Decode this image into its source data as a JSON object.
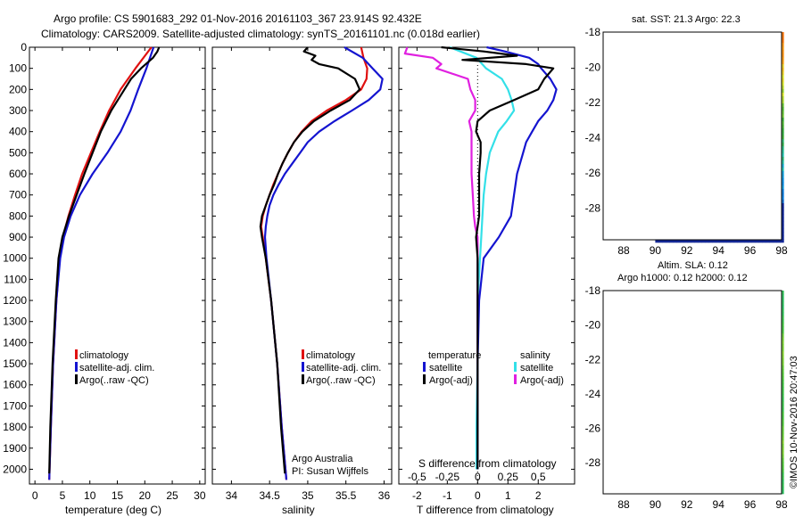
{
  "header": {
    "line1": "Argo profile: CS 5901683_292 01-Nov-2016 20161103_367 23.914S 92.432E",
    "line2": "Climatology: CARS2009. Satellite-adjusted climatology: synTS_20161101.nc (0.018d earlier)"
  },
  "colors": {
    "climatology": "#e01010",
    "satellite": "#1414d0",
    "argo": "#000000",
    "sat_salinity": "#33e0e8",
    "argo_salinity": "#e020e0"
  },
  "chart_data": [
    {
      "type": "line",
      "panel": "temperature",
      "xlabel": "temperature (deg C)",
      "ylim": [
        2070,
        0
      ],
      "xlim": [
        -1,
        31
      ],
      "xticks": [
        "0",
        "5",
        "10",
        "15",
        "20",
        "25",
        "30"
      ],
      "yticks": [
        "0",
        "100",
        "200",
        "300",
        "400",
        "500",
        "600",
        "700",
        "800",
        "900",
        "1000",
        "1100",
        "1200",
        "1300",
        "1400",
        "1500",
        "1600",
        "1700",
        "1800",
        "1900",
        "2000"
      ],
      "legend": [
        "climatology",
        "satellite-adj. clim.",
        "Argo(..raw -QC)"
      ],
      "series": [
        {
          "name": "climatology",
          "depth": [
            0,
            100,
            200,
            300,
            400,
            500,
            600,
            700,
            800,
            900,
            1000,
            1200,
            1500,
            1800,
            2050
          ],
          "values": [
            21.2,
            18.3,
            15.6,
            13.5,
            11.8,
            10.2,
            8.6,
            7.3,
            6.1,
            5.1,
            4.5,
            3.9,
            3.3,
            2.9,
            2.6
          ]
        },
        {
          "name": "satellite-adj. clim.",
          "depth": [
            0,
            100,
            200,
            300,
            400,
            500,
            600,
            700,
            800,
            900,
            1000,
            1200,
            1500,
            1800,
            2050
          ],
          "values": [
            21.6,
            20.3,
            18.8,
            17.4,
            15.6,
            13.2,
            10.5,
            8.2,
            6.5,
            5.3,
            4.6,
            3.9,
            3.3,
            2.9,
            2.6
          ]
        },
        {
          "name": "Argo(..raw -QC)",
          "depth": [
            0,
            20,
            50,
            100,
            150,
            200,
            300,
            400,
            500,
            600,
            700,
            800,
            900,
            1000,
            1200,
            1500,
            1800,
            2020
          ],
          "values": [
            22.6,
            22.3,
            21.5,
            19.3,
            17.5,
            16.3,
            13.9,
            12.0,
            10.5,
            9.0,
            7.6,
            6.2,
            5.0,
            4.3,
            3.8,
            3.2,
            2.8,
            2.6
          ]
        }
      ]
    },
    {
      "type": "line",
      "panel": "salinity",
      "xlabel": "salinity",
      "ylim": [
        2070,
        0
      ],
      "xlim": [
        33.75,
        36.1
      ],
      "xticks": [
        "34",
        "34.5",
        "35",
        "35.5",
        "36"
      ],
      "legend": [
        "climatology",
        "satellite-adj. clim.",
        "Argo(..raw -QC)"
      ],
      "annotation": [
        "Argo Australia",
        "PI: Susan Wijffels"
      ],
      "series": [
        {
          "name": "climatology",
          "depth": [
            0,
            50,
            100,
            150,
            200,
            250,
            300,
            350,
            400,
            450,
            500,
            550,
            600,
            650,
            700,
            750,
            800,
            850,
            900,
            1000,
            1200,
            1500,
            1800,
            2050
          ],
          "values": [
            35.7,
            35.73,
            35.78,
            35.77,
            35.7,
            35.5,
            35.25,
            35.05,
            34.92,
            34.82,
            34.74,
            34.67,
            34.61,
            34.55,
            34.5,
            34.45,
            34.41,
            34.39,
            34.41,
            34.45,
            34.52,
            34.6,
            34.66,
            34.72
          ]
        },
        {
          "name": "satellite-adj. clim.",
          "depth": [
            0,
            50,
            100,
            150,
            200,
            250,
            300,
            350,
            400,
            450,
            500,
            550,
            600,
            650,
            700,
            750,
            800,
            850,
            900,
            1000,
            1200,
            1500,
            1800,
            2050
          ],
          "values": [
            35.48,
            35.72,
            35.85,
            35.98,
            35.95,
            35.8,
            35.58,
            35.35,
            35.15,
            35.0,
            34.9,
            34.8,
            34.7,
            34.62,
            34.55,
            34.5,
            34.47,
            34.45,
            34.44,
            34.46,
            34.52,
            34.6,
            34.66,
            34.72
          ]
        },
        {
          "name": "Argo(..raw -QC)",
          "depth": [
            0,
            20,
            40,
            60,
            80,
            100,
            150,
            200,
            250,
            300,
            350,
            400,
            450,
            500,
            550,
            600,
            650,
            700,
            750,
            800,
            850,
            900,
            1000,
            1200,
            1500,
            1800,
            2020
          ],
          "values": [
            35.0,
            34.95,
            35.1,
            35.05,
            35.15,
            35.4,
            35.62,
            35.68,
            35.55,
            35.3,
            35.08,
            34.93,
            34.82,
            34.74,
            34.67,
            34.61,
            34.56,
            34.5,
            34.45,
            34.4,
            34.38,
            34.4,
            34.45,
            34.52,
            34.6,
            34.65,
            34.7
          ]
        }
      ]
    },
    {
      "type": "line",
      "panel": "difference",
      "xlabel_top": "S difference from climatology",
      "xlabel": "T difference from climatology",
      "ylim": [
        2070,
        0
      ],
      "xlim": [
        -2.6,
        3.2
      ],
      "xticks": [
        "-2",
        "-1",
        "0",
        "1",
        "2"
      ],
      "top_ticks": [
        "-0.5",
        "-0.25",
        "0",
        "0.25",
        "0.5"
      ],
      "legend_headers": [
        "temperature",
        "salinity"
      ],
      "legend": [
        "satellite",
        "Argo(-adj)",
        "satellite",
        "Argo(-adj)"
      ],
      "series": [
        {
          "name": "temperature satellite",
          "depth": [
            0,
            20,
            50,
            80,
            100,
            150,
            200,
            250,
            300,
            350,
            400,
            450,
            500,
            600,
            700,
            800,
            900,
            1000,
            1200,
            1500,
            1800,
            2000
          ],
          "values": [
            0.3,
            0.9,
            1.7,
            2.0,
            2.1,
            2.4,
            2.6,
            2.5,
            2.3,
            2.0,
            1.8,
            1.6,
            1.5,
            1.3,
            1.2,
            1.1,
            0.7,
            0.2,
            0.05,
            0.0,
            0.0,
            0.0
          ]
        },
        {
          "name": "temperature Argo(-adj)",
          "depth": [
            0,
            20,
            40,
            60,
            80,
            100,
            150,
            200,
            250,
            300,
            350,
            400,
            450,
            500,
            600,
            700,
            800,
            900,
            1000,
            1200,
            1500,
            1800,
            2000
          ],
          "values": [
            -1.2,
            0.2,
            1.3,
            -0.5,
            1.6,
            2.5,
            2.2,
            2.0,
            1.2,
            0.4,
            0.0,
            -0.05,
            0.1,
            0.1,
            0.05,
            0.05,
            0.05,
            -0.05,
            0.0,
            0.0,
            0.0,
            0.0,
            0.0
          ]
        },
        {
          "name": "salinity satellite",
          "depth": [
            0,
            50,
            100,
            150,
            200,
            250,
            300,
            350,
            400,
            500,
            600,
            700,
            800,
            900,
            1000,
            1200,
            1500,
            1800,
            2000
          ],
          "values": [
            -0.23,
            -0.01,
            0.07,
            0.2,
            0.25,
            0.28,
            0.3,
            0.24,
            0.17,
            0.1,
            0.07,
            0.05,
            0.04,
            0.03,
            0.02,
            0.0,
            0.0,
            -0.01,
            -0.01
          ]
        },
        {
          "name": "salinity Argo(-adj)",
          "depth": [
            0,
            30,
            50,
            80,
            100,
            150,
            200,
            250,
            300,
            350,
            400,
            500,
            600,
            700,
            800,
            850,
            900,
            1000,
            1200,
            1500
          ],
          "values": [
            -0.58,
            -0.6,
            -0.37,
            -0.3,
            -0.34,
            -0.08,
            -0.06,
            -0.02,
            -0.02,
            -0.07,
            -0.05,
            -0.05,
            -0.05,
            -0.04,
            -0.03,
            -0.02,
            0.0,
            0.0,
            0.0,
            0.0
          ]
        }
      ]
    },
    {
      "type": "heatmap",
      "panel": "sst-map",
      "title": "sat. SST: 21.3  Argo: 22.3",
      "xticks": [
        "88",
        "90",
        "92",
        "94",
        "96",
        "98"
      ],
      "yticks": [
        "-18",
        "-20",
        "-22",
        "-24",
        "-26",
        "-28"
      ],
      "xlim": [
        86.7,
        98
      ],
      "ylim": [
        -29.8,
        -18
      ]
    },
    {
      "type": "heatmap",
      "panel": "sla-map",
      "title_line1": "Altim. SLA: 0.12",
      "title_line2": "Argo h1000: 0.12  h2000: 0.12",
      "xticks": [
        "88",
        "90",
        "92",
        "94",
        "96",
        "98"
      ],
      "yticks": [
        "-18",
        "-20",
        "-22",
        "-24",
        "-26",
        "-28"
      ],
      "xlim": [
        86.7,
        98
      ],
      "ylim": [
        -29.8,
        -18
      ]
    }
  ],
  "footer": {
    "credit": "©IMOS 10-Nov-2016 20:47:03"
  }
}
